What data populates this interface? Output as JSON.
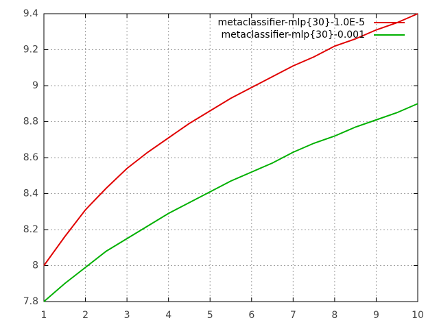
{
  "chart_data": {
    "type": "line",
    "x": [
      1,
      1.5,
      2,
      2.5,
      3,
      3.5,
      4,
      4.5,
      5,
      5.5,
      6,
      6.5,
      7,
      7.5,
      8,
      8.5,
      9,
      9.5,
      10
    ],
    "series": [
      {
        "name": "metaclassifier-mlp{30}-1.0E-5",
        "color": "#e00000",
        "values": [
          8.0,
          8.16,
          8.31,
          8.43,
          8.54,
          8.63,
          8.71,
          8.79,
          8.86,
          8.93,
          8.99,
          9.05,
          9.11,
          9.16,
          9.22,
          9.26,
          9.31,
          9.35,
          9.4
        ]
      },
      {
        "name": "metaclassifier-mlp{30}-0.001",
        "color": "#00b000",
        "values": [
          7.8,
          7.9,
          7.99,
          8.08,
          8.15,
          8.22,
          8.29,
          8.35,
          8.41,
          8.47,
          8.52,
          8.57,
          8.63,
          8.68,
          8.72,
          8.77,
          8.81,
          8.85,
          8.9
        ]
      }
    ],
    "xlim": [
      1,
      10
    ],
    "xticks": [
      1,
      2,
      3,
      4,
      5,
      6,
      7,
      8,
      9,
      10
    ],
    "ylim": [
      7.8,
      9.4
    ],
    "yticks": [
      7.8,
      8,
      8.2,
      8.4,
      8.6,
      8.8,
      9,
      9.2,
      9.4
    ],
    "grid": true,
    "legend": "top-right"
  }
}
